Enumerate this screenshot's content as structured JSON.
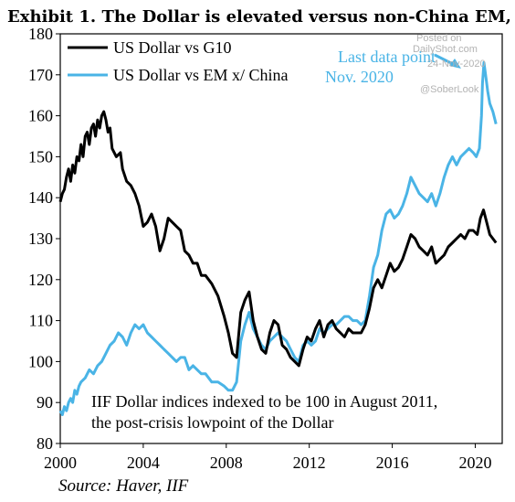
{
  "chart_data": {
    "type": "line",
    "title": "Exhibit 1. The Dollar is elevated versus non-China EM, …",
    "xlabel": "",
    "ylabel": "",
    "xlim": [
      2000,
      2021.3
    ],
    "ylim": [
      80,
      180
    ],
    "x_ticks": [
      2000,
      2004,
      2008,
      2012,
      2016,
      2020
    ],
    "y_ticks": [
      80,
      90,
      100,
      110,
      120,
      130,
      140,
      150,
      160,
      170,
      180
    ],
    "grid": false,
    "legend_position": "top-left",
    "series": [
      {
        "name": "US Dollar vs G10",
        "color": "#000000",
        "points": [
          [
            2000.0,
            139
          ],
          [
            2000.1,
            141
          ],
          [
            2000.2,
            142
          ],
          [
            2000.3,
            145
          ],
          [
            2000.4,
            147
          ],
          [
            2000.5,
            144
          ],
          [
            2000.6,
            148
          ],
          [
            2000.7,
            146
          ],
          [
            2000.8,
            150
          ],
          [
            2000.9,
            149
          ],
          [
            2001.0,
            153
          ],
          [
            2001.1,
            150
          ],
          [
            2001.2,
            155
          ],
          [
            2001.3,
            156
          ],
          [
            2001.4,
            153
          ],
          [
            2001.5,
            157
          ],
          [
            2001.6,
            158
          ],
          [
            2001.7,
            155
          ],
          [
            2001.8,
            159
          ],
          [
            2001.9,
            157
          ],
          [
            2002.0,
            160
          ],
          [
            2002.1,
            161
          ],
          [
            2002.2,
            159
          ],
          [
            2002.3,
            156
          ],
          [
            2002.4,
            157
          ],
          [
            2002.5,
            152
          ],
          [
            2002.7,
            150
          ],
          [
            2002.9,
            151
          ],
          [
            2003.0,
            147
          ],
          [
            2003.2,
            144
          ],
          [
            2003.4,
            143
          ],
          [
            2003.6,
            141
          ],
          [
            2003.8,
            138
          ],
          [
            2004.0,
            133
          ],
          [
            2004.2,
            134
          ],
          [
            2004.4,
            136
          ],
          [
            2004.6,
            133
          ],
          [
            2004.8,
            127
          ],
          [
            2005.0,
            130
          ],
          [
            2005.2,
            135
          ],
          [
            2005.4,
            134
          ],
          [
            2005.6,
            133
          ],
          [
            2005.8,
            132
          ],
          [
            2006.0,
            127
          ],
          [
            2006.2,
            126
          ],
          [
            2006.4,
            124
          ],
          [
            2006.6,
            124
          ],
          [
            2006.8,
            121
          ],
          [
            2007.0,
            121
          ],
          [
            2007.3,
            119
          ],
          [
            2007.6,
            116
          ],
          [
            2007.9,
            111
          ],
          [
            2008.1,
            107
          ],
          [
            2008.3,
            102
          ],
          [
            2008.5,
            101
          ],
          [
            2008.7,
            112
          ],
          [
            2008.9,
            115
          ],
          [
            2009.1,
            117
          ],
          [
            2009.3,
            110
          ],
          [
            2009.5,
            106
          ],
          [
            2009.7,
            103
          ],
          [
            2009.9,
            102
          ],
          [
            2010.1,
            107
          ],
          [
            2010.3,
            110
          ],
          [
            2010.5,
            109
          ],
          [
            2010.7,
            104
          ],
          [
            2010.9,
            103
          ],
          [
            2011.1,
            101
          ],
          [
            2011.3,
            100
          ],
          [
            2011.5,
            99
          ],
          [
            2011.7,
            103
          ],
          [
            2011.9,
            106
          ],
          [
            2012.1,
            105
          ],
          [
            2012.3,
            108
          ],
          [
            2012.5,
            110
          ],
          [
            2012.7,
            106
          ],
          [
            2012.9,
            109
          ],
          [
            2013.1,
            110
          ],
          [
            2013.3,
            108
          ],
          [
            2013.5,
            107
          ],
          [
            2013.7,
            106
          ],
          [
            2013.9,
            108
          ],
          [
            2014.1,
            107
          ],
          [
            2014.3,
            107
          ],
          [
            2014.5,
            107
          ],
          [
            2014.7,
            109
          ],
          [
            2014.9,
            113
          ],
          [
            2015.1,
            118
          ],
          [
            2015.3,
            120
          ],
          [
            2015.5,
            118
          ],
          [
            2015.7,
            121
          ],
          [
            2015.9,
            124
          ],
          [
            2016.1,
            122
          ],
          [
            2016.3,
            123
          ],
          [
            2016.5,
            125
          ],
          [
            2016.7,
            128
          ],
          [
            2016.9,
            131
          ],
          [
            2017.1,
            130
          ],
          [
            2017.3,
            128
          ],
          [
            2017.5,
            127
          ],
          [
            2017.7,
            126
          ],
          [
            2017.9,
            128
          ],
          [
            2018.1,
            124
          ],
          [
            2018.3,
            125
          ],
          [
            2018.5,
            126
          ],
          [
            2018.7,
            128
          ],
          [
            2018.9,
            129
          ],
          [
            2019.1,
            130
          ],
          [
            2019.3,
            131
          ],
          [
            2019.5,
            130
          ],
          [
            2019.7,
            132
          ],
          [
            2019.9,
            132
          ],
          [
            2020.1,
            131
          ],
          [
            2020.25,
            135
          ],
          [
            2020.4,
            137
          ],
          [
            2020.55,
            134
          ],
          [
            2020.7,
            131
          ],
          [
            2020.85,
            130
          ],
          [
            2021.0,
            129
          ]
        ]
      },
      {
        "name": "US Dollar vs EM x/ China",
        "color": "#4ab4e6",
        "points": [
          [
            2000.0,
            88
          ],
          [
            2000.1,
            87
          ],
          [
            2000.2,
            89
          ],
          [
            2000.3,
            88
          ],
          [
            2000.4,
            90
          ],
          [
            2000.5,
            91
          ],
          [
            2000.6,
            90
          ],
          [
            2000.7,
            93
          ],
          [
            2000.8,
            92
          ],
          [
            2000.9,
            94
          ],
          [
            2001.0,
            95
          ],
          [
            2001.2,
            96
          ],
          [
            2001.4,
            98
          ],
          [
            2001.6,
            97
          ],
          [
            2001.8,
            99
          ],
          [
            2002.0,
            100
          ],
          [
            2002.2,
            102
          ],
          [
            2002.4,
            104
          ],
          [
            2002.6,
            105
          ],
          [
            2002.8,
            107
          ],
          [
            2003.0,
            106
          ],
          [
            2003.2,
            104
          ],
          [
            2003.4,
            107
          ],
          [
            2003.6,
            109
          ],
          [
            2003.8,
            108
          ],
          [
            2004.0,
            109
          ],
          [
            2004.2,
            107
          ],
          [
            2004.4,
            106
          ],
          [
            2004.6,
            105
          ],
          [
            2004.8,
            104
          ],
          [
            2005.0,
            103
          ],
          [
            2005.2,
            102
          ],
          [
            2005.4,
            101
          ],
          [
            2005.6,
            100
          ],
          [
            2005.8,
            101
          ],
          [
            2006.0,
            101
          ],
          [
            2006.2,
            98
          ],
          [
            2006.4,
            99
          ],
          [
            2006.6,
            98
          ],
          [
            2006.8,
            97
          ],
          [
            2007.0,
            97
          ],
          [
            2007.3,
            95
          ],
          [
            2007.6,
            95
          ],
          [
            2007.9,
            94
          ],
          [
            2008.1,
            93
          ],
          [
            2008.3,
            93
          ],
          [
            2008.5,
            95
          ],
          [
            2008.7,
            105
          ],
          [
            2008.9,
            109
          ],
          [
            2009.1,
            112
          ],
          [
            2009.3,
            108
          ],
          [
            2009.5,
            106
          ],
          [
            2009.7,
            104
          ],
          [
            2009.9,
            103
          ],
          [
            2010.1,
            105
          ],
          [
            2010.3,
            106
          ],
          [
            2010.5,
            107
          ],
          [
            2010.7,
            106
          ],
          [
            2010.9,
            105
          ],
          [
            2011.1,
            103
          ],
          [
            2011.3,
            101
          ],
          [
            2011.5,
            100
          ],
          [
            2011.7,
            104
          ],
          [
            2011.9,
            105
          ],
          [
            2012.1,
            104
          ],
          [
            2012.3,
            105
          ],
          [
            2012.5,
            108
          ],
          [
            2012.7,
            107
          ],
          [
            2012.9,
            108
          ],
          [
            2013.1,
            109
          ],
          [
            2013.3,
            109
          ],
          [
            2013.5,
            110
          ],
          [
            2013.7,
            111
          ],
          [
            2013.9,
            111
          ],
          [
            2014.1,
            110
          ],
          [
            2014.3,
            110
          ],
          [
            2014.5,
            109
          ],
          [
            2014.7,
            110
          ],
          [
            2014.9,
            116
          ],
          [
            2015.1,
            123
          ],
          [
            2015.3,
            126
          ],
          [
            2015.5,
            132
          ],
          [
            2015.7,
            136
          ],
          [
            2015.9,
            137
          ],
          [
            2016.1,
            135
          ],
          [
            2016.3,
            136
          ],
          [
            2016.5,
            138
          ],
          [
            2016.7,
            141
          ],
          [
            2016.9,
            145
          ],
          [
            2017.1,
            143
          ],
          [
            2017.3,
            141
          ],
          [
            2017.5,
            140
          ],
          [
            2017.7,
            139
          ],
          [
            2017.9,
            141
          ],
          [
            2018.1,
            138
          ],
          [
            2018.3,
            141
          ],
          [
            2018.5,
            145
          ],
          [
            2018.7,
            148
          ],
          [
            2018.9,
            150
          ],
          [
            2019.1,
            148
          ],
          [
            2019.3,
            150
          ],
          [
            2019.5,
            151
          ],
          [
            2019.7,
            152
          ],
          [
            2019.9,
            151
          ],
          [
            2020.05,
            150
          ],
          [
            2020.2,
            152
          ],
          [
            2020.3,
            160
          ],
          [
            2020.35,
            168
          ],
          [
            2020.42,
            173
          ],
          [
            2020.5,
            170
          ],
          [
            2020.6,
            166
          ],
          [
            2020.7,
            163
          ],
          [
            2020.85,
            161
          ],
          [
            2021.0,
            158
          ]
        ]
      }
    ],
    "annotations": {
      "last_point_line1": "Last data point",
      "last_point_line2": "Nov. 2020",
      "note_line1": "IIF Dollar indices indexed to be 100 in August 2011,",
      "note_line2": "the post-crisis lowpoint of the Dollar"
    },
    "source": "Source: Haver, IIF"
  },
  "watermark": {
    "line1": "Posted on",
    "line2": "DailyShot.com",
    "line3": "24-Nov-2020",
    "line4": "@SoberLook"
  }
}
